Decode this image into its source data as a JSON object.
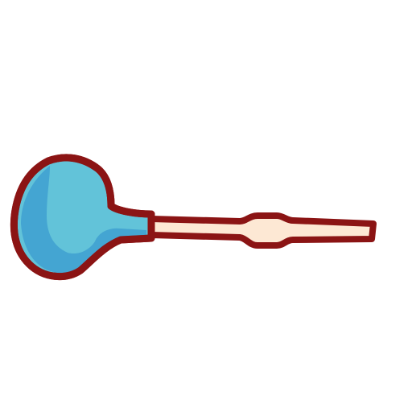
{
  "illustration": {
    "subject": "blue-dropper-icon",
    "colors": {
      "outline": "#8b1414",
      "bulb_fill": "#62c3d9",
      "bulb_shade": "#3b9bcf",
      "tube_fill": "#fde8d4"
    }
  }
}
